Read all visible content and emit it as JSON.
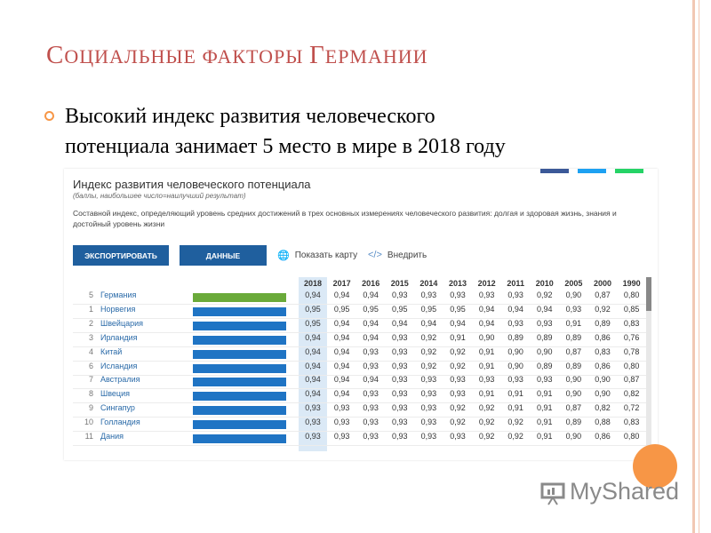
{
  "slide": {
    "title_parts": [
      {
        "text": "С",
        "small": false
      },
      {
        "text": "ОЦИАЛЬНЫЕ ФАКТОРЫ ",
        "small": true
      },
      {
        "text": "Г",
        "small": false
      },
      {
        "text": "ЕРМАНИИ",
        "small": true
      }
    ],
    "bullet_lines": [
      "Высокий индекс развития человеческого",
      "потенциала занимает 5 место в мире в 2018 году"
    ],
    "logo": "MyShared"
  },
  "widget": {
    "title": "Индекс развития человеческого потенциала",
    "subtitle": "(баллы, наибольшее число=наилучший результат)",
    "description": "Составной индекс, определяющий уровень средних достижений в трех основных измерениях человеческого развития: долгая и здоровая жизнь, знания и достойный уровень жизни",
    "export_button": "ЭКСПОРТИРОВАТЬ",
    "data_button": "ДАННЫЕ",
    "show_map": "Показать карту",
    "embed": "Внедрить",
    "years": [
      "2018",
      "2017",
      "2016",
      "2015",
      "2014",
      "2013",
      "2012",
      "2011",
      "2010",
      "2005",
      "2000",
      "1990"
    ],
    "colors": {
      "highlight_bar": "#6aaa3a",
      "bar": "#1f74c4",
      "button": "#1f5f9e",
      "accent": "#f79646",
      "title": "#c0504d"
    },
    "rows": [
      {
        "rank": "5",
        "country": "Германия",
        "highlight": true,
        "values": [
          "0,94",
          "0,94",
          "0,94",
          "0,93",
          "0,93",
          "0,93",
          "0,93",
          "0,93",
          "0,92",
          "0,90",
          "0,87",
          "0,80"
        ]
      },
      {
        "rank": "1",
        "country": "Норвегия",
        "highlight": false,
        "values": [
          "0,95",
          "0,95",
          "0,95",
          "0,95",
          "0,95",
          "0,95",
          "0,94",
          "0,94",
          "0,94",
          "0,93",
          "0,92",
          "0,85"
        ]
      },
      {
        "rank": "2",
        "country": "Швейцария",
        "highlight": false,
        "values": [
          "0,95",
          "0,94",
          "0,94",
          "0,94",
          "0,94",
          "0,94",
          "0,94",
          "0,93",
          "0,93",
          "0,91",
          "0,89",
          "0,83"
        ]
      },
      {
        "rank": "3",
        "country": "Ирландия",
        "highlight": false,
        "values": [
          "0,94",
          "0,94",
          "0,94",
          "0,93",
          "0,92",
          "0,91",
          "0,90",
          "0,89",
          "0,89",
          "0,89",
          "0,86",
          "0,76"
        ]
      },
      {
        "rank": "4",
        "country": "Китай",
        "highlight": false,
        "values": [
          "0,94",
          "0,94",
          "0,93",
          "0,93",
          "0,92",
          "0,92",
          "0,91",
          "0,90",
          "0,90",
          "0,87",
          "0,83",
          "0,78"
        ]
      },
      {
        "rank": "6",
        "country": "Исландия",
        "highlight": false,
        "values": [
          "0,94",
          "0,94",
          "0,93",
          "0,93",
          "0,92",
          "0,92",
          "0,91",
          "0,90",
          "0,89",
          "0,89",
          "0,86",
          "0,80"
        ]
      },
      {
        "rank": "7",
        "country": "Австралия",
        "highlight": false,
        "values": [
          "0,94",
          "0,94",
          "0,94",
          "0,93",
          "0,93",
          "0,93",
          "0,93",
          "0,93",
          "0,93",
          "0,90",
          "0,90",
          "0,87"
        ]
      },
      {
        "rank": "8",
        "country": "Швеция",
        "highlight": false,
        "values": [
          "0,94",
          "0,94",
          "0,93",
          "0,93",
          "0,93",
          "0,93",
          "0,91",
          "0,91",
          "0,91",
          "0,90",
          "0,90",
          "0,82"
        ]
      },
      {
        "rank": "9",
        "country": "Сингапур",
        "highlight": false,
        "values": [
          "0,93",
          "0,93",
          "0,93",
          "0,93",
          "0,93",
          "0,92",
          "0,92",
          "0,91",
          "0,91",
          "0,87",
          "0,82",
          "0,72"
        ]
      },
      {
        "rank": "10",
        "country": "Голландия",
        "highlight": false,
        "values": [
          "0,93",
          "0,93",
          "0,93",
          "0,93",
          "0,93",
          "0,92",
          "0,92",
          "0,92",
          "0,91",
          "0,89",
          "0,88",
          "0,83"
        ]
      },
      {
        "rank": "11",
        "country": "Дания",
        "highlight": false,
        "values": [
          "0,93",
          "0,93",
          "0,93",
          "0,93",
          "0,93",
          "0,93",
          "0,92",
          "0,92",
          "0,91",
          "0,90",
          "0,86",
          "0,80"
        ]
      }
    ]
  }
}
